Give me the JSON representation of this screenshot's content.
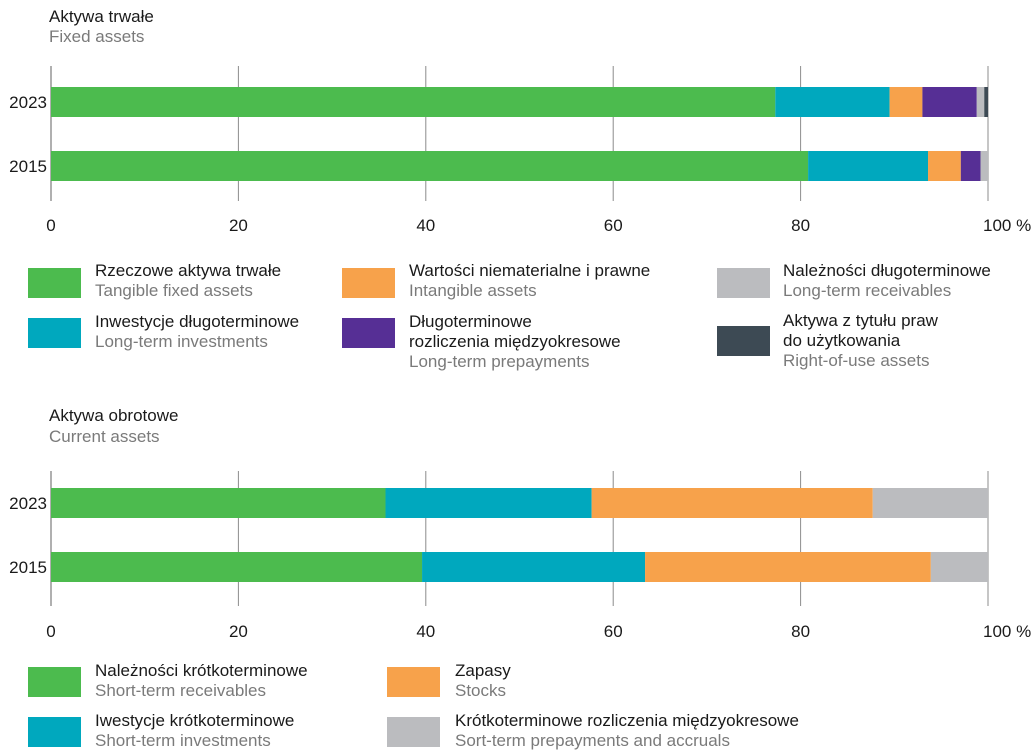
{
  "chart_data": [
    {
      "type": "bar",
      "orientation": "horizontal",
      "stacked": true,
      "title": "Aktywa trwałe",
      "subtitle": "Fixed assets",
      "categories": [
        "2023",
        "2015"
      ],
      "xlim": [
        0,
        100
      ],
      "x_ticks": [
        "0",
        "20",
        "40",
        "60",
        "80",
        "100"
      ],
      "x_unit": "%",
      "grid": true,
      "legend_position": "bottom",
      "series": [
        {
          "label_pl": "Rzeczowe aktywa trwałe",
          "label_en": "Tangible fixed assets",
          "color": "#4cbb4e",
          "values": [
            77.3,
            80.8
          ]
        },
        {
          "label_pl": "Inwestycje długoterminowe",
          "label_en": "Long-term investments",
          "color": "#00a8be",
          "values": [
            12.2,
            12.8
          ]
        },
        {
          "label_pl": "Wartości niematerialne i prawne",
          "label_en": "Intangible assets",
          "color": "#f7a24b",
          "values": [
            3.5,
            3.5
          ]
        },
        {
          "label_pl": "Długoterminowe rozliczenia międzyokresowe",
          "label_en": "Long-term prepayments",
          "color": "#562f95",
          "values": [
            5.8,
            2.1
          ]
        },
        {
          "label_pl": "Należności długoterminowe",
          "label_en": "Long-term receivables",
          "color": "#bbbcbf",
          "values": [
            0.8,
            0.8
          ]
        },
        {
          "label_pl": "Aktywa z tytułu praw do użytkowania",
          "label_en": "Right-of-use assets",
          "color": "#3d4a54",
          "values": [
            0.4,
            0
          ]
        }
      ]
    },
    {
      "type": "bar",
      "orientation": "horizontal",
      "stacked": true,
      "title": "Aktywa obrotowe",
      "subtitle": "Current assets",
      "categories": [
        "2023",
        "2015"
      ],
      "xlim": [
        0,
        100
      ],
      "x_ticks": [
        "0",
        "20",
        "40",
        "60",
        "80",
        "100"
      ],
      "x_unit": "%",
      "grid": true,
      "legend_position": "bottom",
      "series": [
        {
          "label_pl": "Należności krótkoterminowe",
          "label_en": "Short-term receivables",
          "color": "#4cbb4e",
          "values": [
            35.7,
            39.6
          ]
        },
        {
          "label_pl": "Iwestycje krótkoterminowe",
          "label_en": "Short-term investments",
          "color": "#00a8be",
          "values": [
            22.0,
            23.8
          ]
        },
        {
          "label_pl": "Zapasy",
          "label_en": "Stocks",
          "color": "#f7a24b",
          "values": [
            30.0,
            30.5
          ]
        },
        {
          "label_pl": "Krótkoterminowe rozliczenia międzyokresowe",
          "label_en": "Sort-term prepayments and accruals",
          "color": "#bbbcbf",
          "values": [
            12.3,
            6.1
          ]
        }
      ]
    }
  ]
}
